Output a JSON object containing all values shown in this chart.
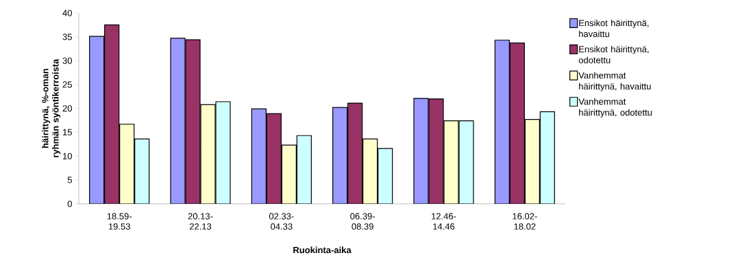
{
  "chart_data": {
    "type": "bar",
    "xlabel": "Ruokinta-aika",
    "ylabel": "häirittynä, %-oman ryhmän syöntikerroista",
    "categories": [
      "18.59-19.53",
      "20.13-22.13",
      "02.33-04.33",
      "06.39-08.39",
      "12.46-14.46",
      "16.02-18.02"
    ],
    "series": [
      {
        "name": "Ensikot häirittynä, havaittu",
        "color": "#9999ff",
        "values": [
          35.1,
          34.7,
          19.9,
          20.2,
          22.1,
          34.3
        ]
      },
      {
        "name": "Ensikot häirittynä, odotettu",
        "color": "#993366",
        "values": [
          37.5,
          34.4,
          18.9,
          21.1,
          22.0,
          33.7
        ]
      },
      {
        "name": "Vanhemmat häirittynä, havaittu",
        "color": "#ffffcc",
        "values": [
          16.7,
          20.8,
          12.3,
          13.6,
          17.4,
          17.7
        ]
      },
      {
        "name": "Vanhemmat häirittynä, odotettu",
        "color": "#ccffff",
        "values": [
          13.6,
          21.4,
          14.3,
          11.6,
          17.4,
          19.3
        ]
      }
    ],
    "ylim": [
      0,
      40
    ],
    "yticks": [
      0,
      5,
      10,
      15,
      20,
      25,
      30,
      35,
      40
    ],
    "grid": false,
    "legend": "right"
  }
}
